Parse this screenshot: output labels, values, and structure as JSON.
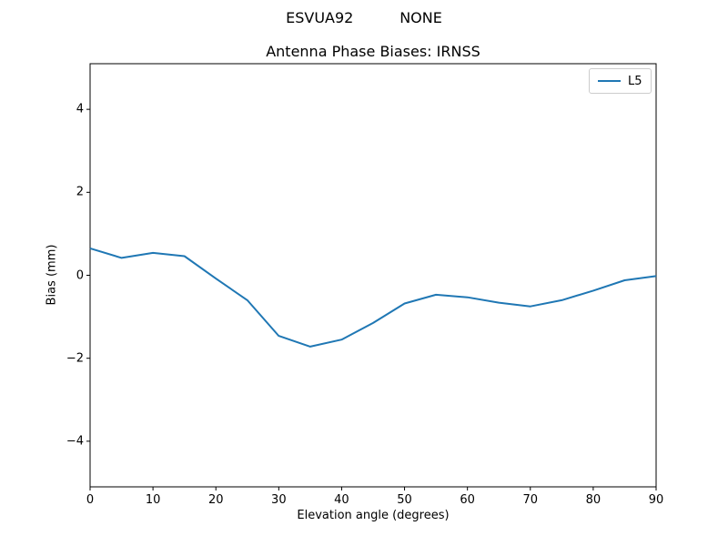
{
  "figure": {
    "suptitle": "ESVUA92          NONE",
    "background": "#ffffff"
  },
  "chart_data": {
    "type": "line",
    "title": "Antenna Phase Biases: IRNSS",
    "xlabel": "Elevation angle (degrees)",
    "ylabel": "Bias (mm)",
    "xlim": [
      0,
      90
    ],
    "ylim": [
      -5.1,
      5.1
    ],
    "grid": false,
    "xticks": [
      {
        "value": 0,
        "label": "0"
      },
      {
        "value": 10,
        "label": "10"
      },
      {
        "value": 20,
        "label": "20"
      },
      {
        "value": 30,
        "label": "30"
      },
      {
        "value": 40,
        "label": "40"
      },
      {
        "value": 50,
        "label": "50"
      },
      {
        "value": 60,
        "label": "60"
      },
      {
        "value": 70,
        "label": "70"
      },
      {
        "value": 80,
        "label": "80"
      },
      {
        "value": 90,
        "label": "90"
      }
    ],
    "yticks": [
      {
        "value": -4,
        "label": "−4"
      },
      {
        "value": -2,
        "label": "−2"
      },
      {
        "value": 0,
        "label": "0"
      },
      {
        "value": 2,
        "label": "2"
      },
      {
        "value": 4,
        "label": "4"
      }
    ],
    "legend": {
      "position": "upper right",
      "entries": [
        {
          "label": "L5",
          "color": "#1f77b4"
        }
      ]
    },
    "series": [
      {
        "name": "L5",
        "color": "#1f77b4",
        "x": [
          0,
          5,
          10,
          15,
          20,
          25,
          30,
          35,
          40,
          45,
          50,
          55,
          60,
          65,
          70,
          75,
          80,
          85,
          90
        ],
        "values": [
          0.65,
          0.42,
          0.54,
          0.46,
          -0.08,
          -0.6,
          -1.46,
          -1.72,
          -1.55,
          -1.15,
          -0.68,
          -0.47,
          -0.53,
          -0.66,
          -0.75,
          -0.6,
          -0.37,
          -0.12,
          -0.02
        ]
      }
    ]
  }
}
